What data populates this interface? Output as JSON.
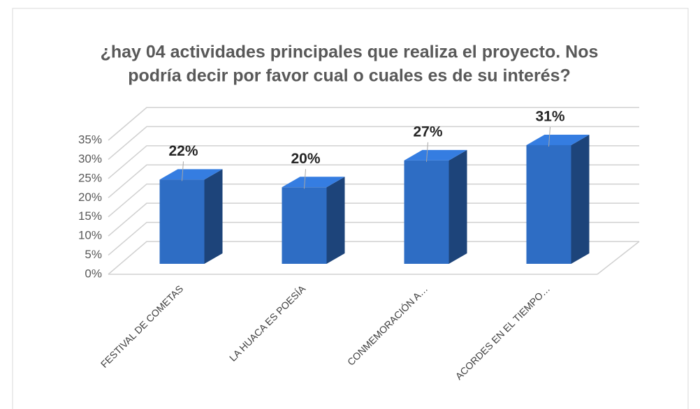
{
  "chart_data": {
    "type": "bar3d",
    "title": [
      "¿hay 04 actividades principales que realiza el proyecto. Nos",
      "podría decir por favor cual o cuales es de su interés?"
    ],
    "categories": [
      "FESTIVAL DE COMETAS",
      "LA HUACA ES POESÍA",
      "CONMEMORACIÓN A…",
      "ACORDES EN EL TIEMPO…"
    ],
    "values": [
      22,
      20,
      27,
      31
    ],
    "value_labels": [
      "22%",
      "20%",
      "27%",
      "31%"
    ],
    "color": "#2e6dc4",
    "ylim": [
      0,
      35
    ],
    "yticks": [
      {
        "value": 0,
        "label": "0%"
      },
      {
        "value": 5,
        "label": "5%"
      },
      {
        "value": 10,
        "label": "10%"
      },
      {
        "value": 15,
        "label": "15%"
      },
      {
        "value": 20,
        "label": "20%"
      },
      {
        "value": 25,
        "label": "25%"
      },
      {
        "value": 30,
        "label": "30%"
      },
      {
        "value": 35,
        "label": "35%"
      }
    ],
    "grid": true
  }
}
